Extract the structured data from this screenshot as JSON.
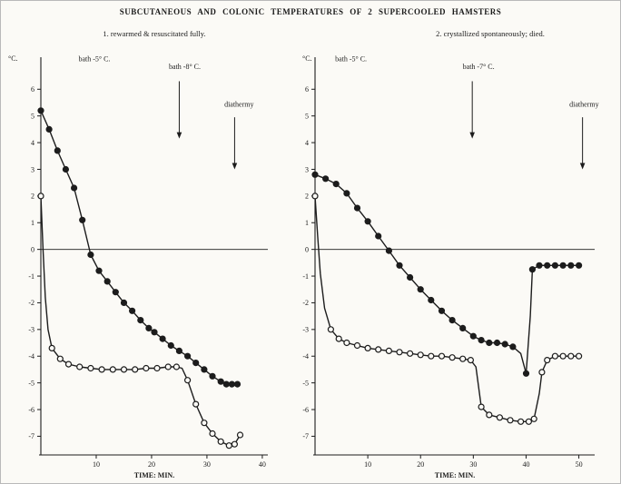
{
  "page": {
    "paper_color": "#fbfaf6",
    "ink_color": "#1c1c1c",
    "border_color": "#b9b9b9"
  },
  "title": "SUBCUTANEOUS AND COLONIC TEMPERATURES OF 2 SUPERCOOLED HAMSTERS",
  "chart_data": [
    {
      "type": "line",
      "subtitle": "1. rewarmed & resuscitated fully.",
      "xlabel": "TIME: MIN.",
      "ylabel": "°C.",
      "xlim": [
        0,
        41
      ],
      "ylim": [
        -7.7,
        7.2
      ],
      "xticks": [
        10,
        20,
        30,
        40
      ],
      "yticks": [
        6,
        5,
        4,
        3,
        2,
        1,
        0,
        -1,
        -2,
        -3,
        -4,
        -5,
        -6,
        -7
      ],
      "grid": false,
      "zero_line": true,
      "legend": "none",
      "annotations": [
        {
          "text": "bath -5° C.",
          "x": 6.8,
          "y": 7.05,
          "anchor": "start"
        },
        {
          "text": "bath -8° C.",
          "x": 26,
          "y": 6.75,
          "anchor": "middle",
          "arrow": {
            "x": 25,
            "from": 6.3,
            "to": 4.15
          }
        },
        {
          "text": "diathermy",
          "x": 35.8,
          "y": 5.35,
          "anchor": "middle",
          "arrow": {
            "x": 35,
            "from": 4.95,
            "to": 3.0
          }
        }
      ],
      "series": [
        {
          "name": "colonic (filled circles)",
          "marker": "filled",
          "points": [
            [
              0,
              5.2
            ],
            [
              1.5,
              4.5
            ],
            [
              3,
              3.7
            ],
            [
              4.5,
              3.0
            ],
            [
              6,
              2.3
            ],
            [
              7.5,
              1.1
            ],
            [
              9,
              -0.2
            ],
            [
              10.5,
              -0.8
            ],
            [
              12,
              -1.2
            ],
            [
              13.5,
              -1.6
            ],
            [
              15,
              -2.0
            ],
            [
              16.5,
              -2.3
            ],
            [
              18,
              -2.65
            ],
            [
              19.5,
              -2.95
            ],
            [
              20.5,
              -3.1
            ],
            [
              22,
              -3.35
            ],
            [
              23.5,
              -3.6
            ],
            [
              25,
              -3.8
            ],
            [
              26.5,
              -4.0
            ],
            [
              28,
              -4.25
            ],
            [
              29.5,
              -4.5
            ],
            [
              31,
              -4.75
            ],
            [
              32.5,
              -4.95
            ],
            [
              33.5,
              -5.05
            ],
            [
              34.5,
              -5.05
            ],
            [
              35.5,
              -5.05
            ]
          ]
        },
        {
          "name": "subcutaneous (open circles)",
          "marker": "open",
          "points": [
            [
              0,
              2.0
            ],
            [
              0.4,
              0.0,
              0
            ],
            [
              0.8,
              -1.8,
              0
            ],
            [
              1.3,
              -3.0,
              0
            ],
            [
              2,
              -3.7
            ],
            [
              3.5,
              -4.1
            ],
            [
              5,
              -4.3
            ],
            [
              7,
              -4.4
            ],
            [
              9,
              -4.45
            ],
            [
              11,
              -4.5
            ],
            [
              13,
              -4.5
            ],
            [
              15,
              -4.5
            ],
            [
              17,
              -4.5
            ],
            [
              19,
              -4.45
            ],
            [
              21,
              -4.45
            ],
            [
              23,
              -4.4
            ],
            [
              24.5,
              -4.4
            ],
            [
              25.5,
              -4.45,
              0
            ],
            [
              26.5,
              -4.9
            ],
            [
              28,
              -5.8
            ],
            [
              29.5,
              -6.5
            ],
            [
              31,
              -6.9
            ],
            [
              32.5,
              -7.2
            ],
            [
              34,
              -7.35
            ],
            [
              35,
              -7.3
            ],
            [
              36,
              -6.95
            ]
          ]
        }
      ]
    },
    {
      "type": "line",
      "subtitle": "2. crystallized spontaneously; died.",
      "xlabel": "TIME: MIN.",
      "ylabel": "°C.",
      "xlim": [
        0,
        53
      ],
      "ylim": [
        -7.7,
        7.2
      ],
      "xticks": [
        10,
        20,
        30,
        40,
        50
      ],
      "yticks": [
        6,
        5,
        4,
        3,
        2,
        1,
        0,
        -1,
        -2,
        -3,
        -4,
        -5,
        -6,
        -7
      ],
      "grid": false,
      "zero_line": true,
      "legend": "none",
      "annotations": [
        {
          "text": "bath -5° C.",
          "x": 3.8,
          "y": 7.05,
          "anchor": "start"
        },
        {
          "text": "bath -7° C.",
          "x": 31,
          "y": 6.75,
          "anchor": "middle",
          "arrow": {
            "x": 29.8,
            "from": 6.3,
            "to": 4.15
          }
        },
        {
          "text": "diathermy",
          "x": 51,
          "y": 5.35,
          "anchor": "middle",
          "arrow": {
            "x": 50.7,
            "from": 4.95,
            "to": 3.0
          }
        }
      ],
      "series": [
        {
          "name": "colonic (filled circles)",
          "marker": "filled",
          "points": [
            [
              0,
              2.8
            ],
            [
              2,
              2.65
            ],
            [
              4,
              2.45
            ],
            [
              6,
              2.1
            ],
            [
              8,
              1.55
            ],
            [
              10,
              1.05
            ],
            [
              12,
              0.5
            ],
            [
              14,
              -0.05
            ],
            [
              16,
              -0.6
            ],
            [
              18,
              -1.05
            ],
            [
              20,
              -1.5
            ],
            [
              22,
              -1.9
            ],
            [
              24,
              -2.3
            ],
            [
              26,
              -2.65
            ],
            [
              28,
              -2.95
            ],
            [
              30,
              -3.25
            ],
            [
              31.5,
              -3.4
            ],
            [
              33,
              -3.5
            ],
            [
              34.5,
              -3.5
            ],
            [
              36,
              -3.55
            ],
            [
              37.5,
              -3.65
            ],
            [
              39,
              -3.9,
              0
            ],
            [
              40,
              -4.65
            ],
            [
              40.8,
              -2.5,
              0
            ],
            [
              41.2,
              -0.75
            ],
            [
              42.5,
              -0.6
            ],
            [
              44,
              -0.6
            ],
            [
              45.5,
              -0.6
            ],
            [
              47,
              -0.6
            ],
            [
              48.5,
              -0.6
            ],
            [
              50,
              -0.6
            ]
          ]
        },
        {
          "name": "subcutaneous (open circles)",
          "marker": "open",
          "points": [
            [
              0,
              2.0
            ],
            [
              0.5,
              0.5,
              0
            ],
            [
              1,
              -0.9,
              0
            ],
            [
              1.8,
              -2.2,
              0
            ],
            [
              3,
              -3.0
            ],
            [
              4.5,
              -3.35
            ],
            [
              6,
              -3.5
            ],
            [
              8,
              -3.6
            ],
            [
              10,
              -3.7
            ],
            [
              12,
              -3.75
            ],
            [
              14,
              -3.8
            ],
            [
              16,
              -3.85
            ],
            [
              18,
              -3.9
            ],
            [
              20,
              -3.95
            ],
            [
              22,
              -4.0
            ],
            [
              24,
              -4.0
            ],
            [
              26,
              -4.05
            ],
            [
              28,
              -4.1
            ],
            [
              29.5,
              -4.15
            ],
            [
              30.5,
              -4.4,
              0
            ],
            [
              31.5,
              -5.9
            ],
            [
              33,
              -6.2
            ],
            [
              35,
              -6.3
            ],
            [
              37,
              -6.4
            ],
            [
              39,
              -6.45
            ],
            [
              40.5,
              -6.45
            ],
            [
              41.5,
              -6.35
            ],
            [
              42.5,
              -5.4,
              0
            ],
            [
              43,
              -4.6
            ],
            [
              44,
              -4.15
            ],
            [
              45.5,
              -4.0
            ],
            [
              47,
              -4.0
            ],
            [
              48.5,
              -4.0
            ],
            [
              50,
              -4.0
            ]
          ]
        }
      ]
    }
  ]
}
